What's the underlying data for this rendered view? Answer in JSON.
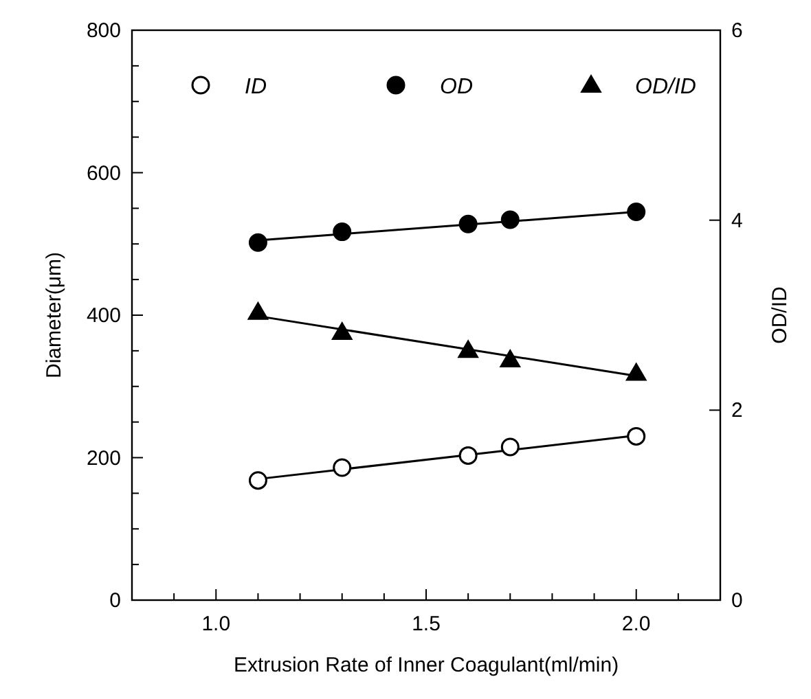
{
  "chart_data": {
    "type": "scatter",
    "xlabel": "Extrusion Rate of Inner Coagulant(ml/min)",
    "ylabel": "Diameter(μm)",
    "y2label": "OD/ID",
    "xlim": [
      0.8,
      2.2
    ],
    "xticks": [
      {
        "value": 0.9,
        "label": null
      },
      {
        "value": 1.0,
        "label": "1.0"
      },
      {
        "value": 1.1,
        "label": null
      },
      {
        "value": 1.2,
        "label": null
      },
      {
        "value": 1.3,
        "label": null
      },
      {
        "value": 1.4,
        "label": null
      },
      1.5,
      {
        "value": 1.6,
        "label": null
      },
      {
        "value": 1.7,
        "label": null
      },
      {
        "value": 1.8,
        "label": null
      },
      {
        "value": 1.9,
        "label": null
      },
      {
        "value": 2.0,
        "label": "2.0"
      },
      {
        "value": 2.1,
        "label": null
      }
    ],
    "ylim": [
      0,
      800
    ],
    "yticks": [
      0,
      {
        "value": 50,
        "label": null
      },
      {
        "value": 100,
        "label": null
      },
      {
        "value": 150,
        "label": null
      },
      200,
      {
        "value": 250,
        "label": null
      },
      {
        "value": 300,
        "label": null
      },
      {
        "value": 350,
        "label": null
      },
      400,
      {
        "value": 450,
        "label": null
      },
      {
        "value": 500,
        "label": null
      },
      {
        "value": 550,
        "label": null
      },
      600,
      {
        "value": 650,
        "label": null
      },
      {
        "value": 700,
        "label": null
      },
      {
        "value": 750,
        "label": null
      },
      800
    ],
    "y2lim": [
      0,
      6
    ],
    "y2ticks": [
      0,
      2,
      4,
      6
    ],
    "legend": "top",
    "grid": false,
    "series": [
      {
        "name": "ID",
        "marker": "circle",
        "color": "#ffffff",
        "x": [
          1.1,
          1.3,
          1.6,
          1.7,
          2.0
        ],
        "values": [
          168,
          186,
          203,
          215,
          230
        ]
      },
      {
        "name": "OD",
        "marker": "circle",
        "color": "#000000",
        "x": [
          1.1,
          1.3,
          1.6,
          1.7,
          2.0
        ],
        "values": [
          502,
          517,
          528,
          534,
          545
        ]
      },
      {
        "name": "OD/ID",
        "marker": "triangle",
        "axis": "y2",
        "color": "#000000",
        "x": [
          1.1,
          1.3,
          1.6,
          1.7,
          2.0
        ],
        "values": [
          3.03,
          2.82,
          2.63,
          2.53,
          2.39
        ]
      },
      {
        "type": "line",
        "color": "#000000",
        "x": [
          1.1,
          2.0
        ],
        "values": [
          170,
          231
        ]
      },
      {
        "type": "line",
        "color": "#000000",
        "x": [
          1.1,
          2.0
        ],
        "values": [
          505,
          545
        ]
      },
      {
        "type": "line",
        "axis": "y2",
        "color": "#000000",
        "x": [
          1.1,
          2.0
        ],
        "values": [
          2.99,
          2.36
        ]
      }
    ]
  }
}
